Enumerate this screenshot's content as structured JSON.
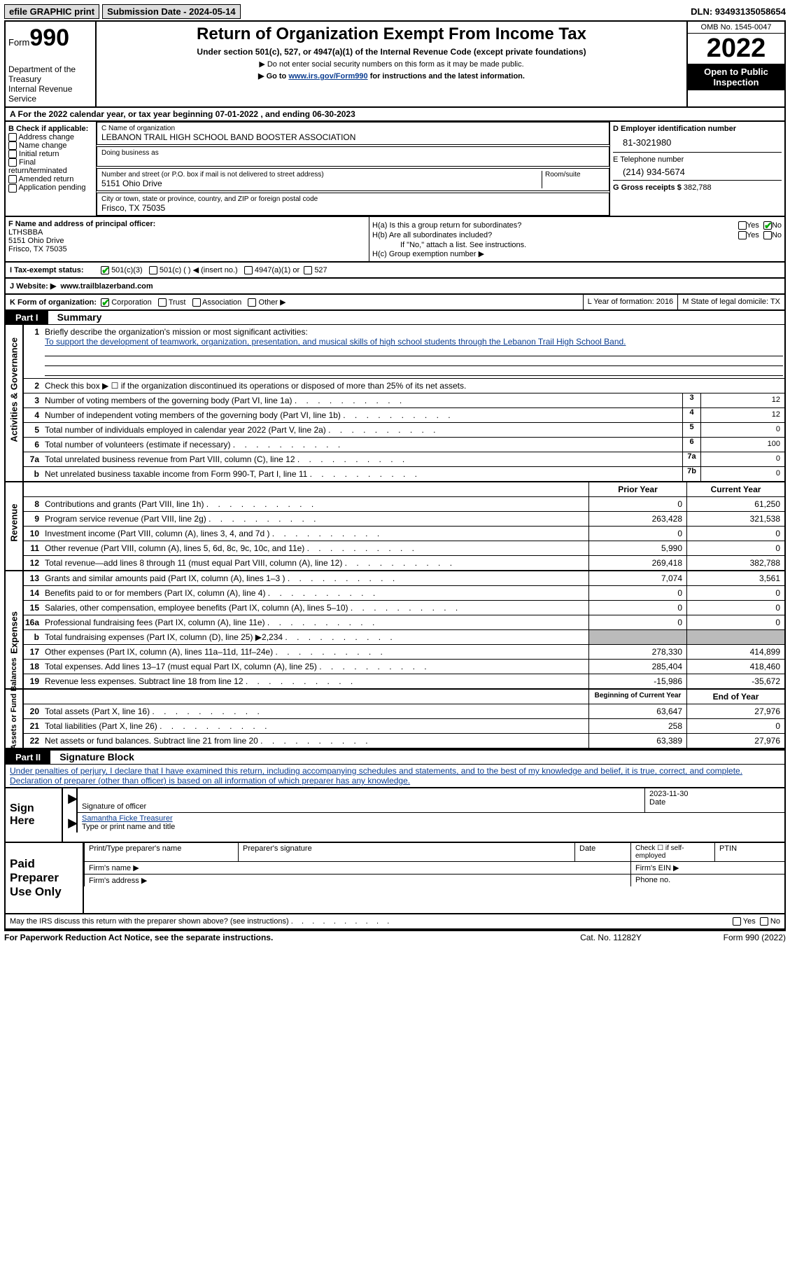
{
  "top": {
    "efile": "efile GRAPHIC print",
    "subdate_label": "Submission Date - 2024-05-14",
    "dln": "DLN: 93493135058654"
  },
  "header": {
    "form_word": "Form",
    "form_num": "990",
    "dept": "Department of the Treasury\nInternal Revenue Service",
    "title": "Return of Organization Exempt From Income Tax",
    "subtitle": "Under section 501(c), 527, or 4947(a)(1) of the Internal Revenue Code (except private foundations)",
    "note1": "▶ Do not enter social security numbers on this form as it may be made public.",
    "note2_pre": "▶ Go to ",
    "note2_link": "www.irs.gov/Form990",
    "note2_post": " for instructions and the latest information.",
    "omb": "OMB No. 1545-0047",
    "year": "2022",
    "inspection": "Open to Public Inspection"
  },
  "rowA": "A For the 2022 calendar year, or tax year beginning 07-01-2022    , and ending 06-30-2023",
  "boxB": {
    "label": "B Check if applicable:",
    "opts": [
      "Address change",
      "Name change",
      "Initial return",
      "Final return/terminated",
      "Amended return",
      "Application pending"
    ]
  },
  "boxC": {
    "name_lbl": "C Name of organization",
    "name": "LEBANON TRAIL HIGH SCHOOL BAND BOOSTER ASSOCIATION",
    "dba_lbl": "Doing business as",
    "addr_lbl": "Number and street (or P.O. box if mail is not delivered to street address)",
    "room_lbl": "Room/suite",
    "addr": "5151 Ohio Drive",
    "city_lbl": "City or town, state or province, country, and ZIP or foreign postal code",
    "city": "Frisco, TX  75035"
  },
  "boxD": {
    "lbl": "D Employer identification number",
    "val": "81-3021980"
  },
  "boxE": {
    "lbl": "E Telephone number",
    "val": "(214) 934-5674"
  },
  "boxG": {
    "lbl": "G Gross receipts $",
    "val": "382,788"
  },
  "boxF": {
    "lbl": "F  Name and address of principal officer:",
    "name": "LTHSBBA",
    "addr1": "5151 Ohio Drive",
    "addr2": "Frisco, TX  75035"
  },
  "boxH": {
    "ha": "H(a)  Is this a group return for subordinates?",
    "hb": "H(b)  Are all subordinates included?",
    "hb_note": "If \"No,\" attach a list. See instructions.",
    "hc": "H(c)  Group exemption number ▶",
    "ha_no_checked": true
  },
  "taxrow": {
    "lbl": "I   Tax-exempt status:",
    "o1": "501(c)(3)",
    "o2": "501(c) (  ) ◀ (insert no.)",
    "o3": "4947(a)(1) or",
    "o4": "527",
    "o1_checked": true
  },
  "jrow": {
    "lbl": "J   Website: ▶",
    "val": "www.trailblazerband.com"
  },
  "krow": {
    "k": "K Form of organization:",
    "opts": [
      "Corporation",
      "Trust",
      "Association",
      "Other ▶"
    ],
    "corp_checked": true,
    "l_lbl": "L Year of formation:",
    "l_val": "2016",
    "m_lbl": "M State of legal domicile:",
    "m_val": "TX"
  },
  "partI": {
    "label": "Part I",
    "title": "Summary"
  },
  "summary": {
    "q1a": "Briefly describe the organization's mission or most significant activities:",
    "q1b": "To support the development of teamwork, organization, presentation, and musical skills of high school students through the Lebanon Trail High School Band.",
    "q2": "Check this box ▶ ☐  if the organization discontinued its operations or disposed of more than 25% of its net assets.",
    "rows_box": [
      {
        "n": "3",
        "d": "Number of voting members of the governing body (Part VI, line 1a)",
        "b": "3",
        "v": "12"
      },
      {
        "n": "4",
        "d": "Number of independent voting members of the governing body (Part VI, line 1b)",
        "b": "4",
        "v": "12"
      },
      {
        "n": "5",
        "d": "Total number of individuals employed in calendar year 2022 (Part V, line 2a)",
        "b": "5",
        "v": "0"
      },
      {
        "n": "6",
        "d": "Total number of volunteers (estimate if necessary)",
        "b": "6",
        "v": "100"
      },
      {
        "n": "7a",
        "d": "Total unrelated business revenue from Part VIII, column (C), line 12",
        "b": "7a",
        "v": "0"
      },
      {
        "n": "b",
        "d": "Net unrelated business taxable income from Form 990-T, Part I, line 11",
        "b": "7b",
        "v": "0"
      }
    ],
    "col_prior": "Prior Year",
    "col_curr": "Current Year"
  },
  "revenue": [
    {
      "n": "8",
      "d": "Contributions and grants (Part VIII, line 1h)",
      "p": "0",
      "c": "61,250"
    },
    {
      "n": "9",
      "d": "Program service revenue (Part VIII, line 2g)",
      "p": "263,428",
      "c": "321,538"
    },
    {
      "n": "10",
      "d": "Investment income (Part VIII, column (A), lines 3, 4, and 7d )",
      "p": "0",
      "c": "0"
    },
    {
      "n": "11",
      "d": "Other revenue (Part VIII, column (A), lines 5, 6d, 8c, 9c, 10c, and 11e)",
      "p": "5,990",
      "c": "0"
    },
    {
      "n": "12",
      "d": "Total revenue—add lines 8 through 11 (must equal Part VIII, column (A), line 12)",
      "p": "269,418",
      "c": "382,788"
    }
  ],
  "expenses": [
    {
      "n": "13",
      "d": "Grants and similar amounts paid (Part IX, column (A), lines 1–3 )",
      "p": "7,074",
      "c": "3,561"
    },
    {
      "n": "14",
      "d": "Benefits paid to or for members (Part IX, column (A), line 4)",
      "p": "0",
      "c": "0"
    },
    {
      "n": "15",
      "d": "Salaries, other compensation, employee benefits (Part IX, column (A), lines 5–10)",
      "p": "0",
      "c": "0"
    },
    {
      "n": "16a",
      "d": "Professional fundraising fees (Part IX, column (A), line 11e)",
      "p": "0",
      "c": "0"
    },
    {
      "n": "b",
      "d": "Total fundraising expenses (Part IX, column (D), line 25) ▶2,234",
      "p": "",
      "c": "",
      "gray": true
    },
    {
      "n": "17",
      "d": "Other expenses (Part IX, column (A), lines 11a–11d, 11f–24e)",
      "p": "278,330",
      "c": "414,899"
    },
    {
      "n": "18",
      "d": "Total expenses. Add lines 13–17 (must equal Part IX, column (A), line 25)",
      "p": "285,404",
      "c": "418,460"
    },
    {
      "n": "19",
      "d": "Revenue less expenses. Subtract line 18 from line 12",
      "p": "-15,986",
      "c": "-35,672"
    }
  ],
  "netassets": {
    "col_beg": "Beginning of Current Year",
    "col_end": "End of Year",
    "rows": [
      {
        "n": "20",
        "d": "Total assets (Part X, line 16)",
        "p": "63,647",
        "c": "27,976"
      },
      {
        "n": "21",
        "d": "Total liabilities (Part X, line 26)",
        "p": "258",
        "c": "0"
      },
      {
        "n": "22",
        "d": "Net assets or fund balances. Subtract line 21 from line 20",
        "p": "63,389",
        "c": "27,976"
      }
    ]
  },
  "partII": {
    "label": "Part II",
    "title": "Signature Block"
  },
  "sigtext": "Under penalties of perjury, I declare that I have examined this return, including accompanying schedules and statements, and to the best of my knowledge and belief, it is true, correct, and complete. Declaration of preparer (other than officer) is based on all information of which preparer has any knowledge.",
  "sign": {
    "here": "Sign Here",
    "sig_lbl": "Signature of officer",
    "date": "2023-11-30",
    "date_lbl": "Date",
    "name": "Samantha Ficke  Treasurer",
    "name_lbl": "Type or print name and title"
  },
  "paid": {
    "label": "Paid Preparer Use Only",
    "h1": "Print/Type preparer's name",
    "h2": "Preparer's signature",
    "h3": "Date",
    "h4": "Check ☐ if self-employed",
    "h5": "PTIN",
    "firm_name": "Firm's name   ▶",
    "firm_ein": "Firm's EIN ▶",
    "firm_addr": "Firm's address ▶",
    "phone": "Phone no."
  },
  "discuss": "May the IRS discuss this return with the preparer shown above? (see instructions)",
  "footer": {
    "left": "For Paperwork Reduction Act Notice, see the separate instructions.",
    "mid": "Cat. No. 11282Y",
    "right": "Form 990 (2022)"
  },
  "labels": {
    "activities": "Activities & Governance",
    "revenue": "Revenue",
    "expenses": "Expenses",
    "netassets": "Net Assets or Fund Balances"
  }
}
